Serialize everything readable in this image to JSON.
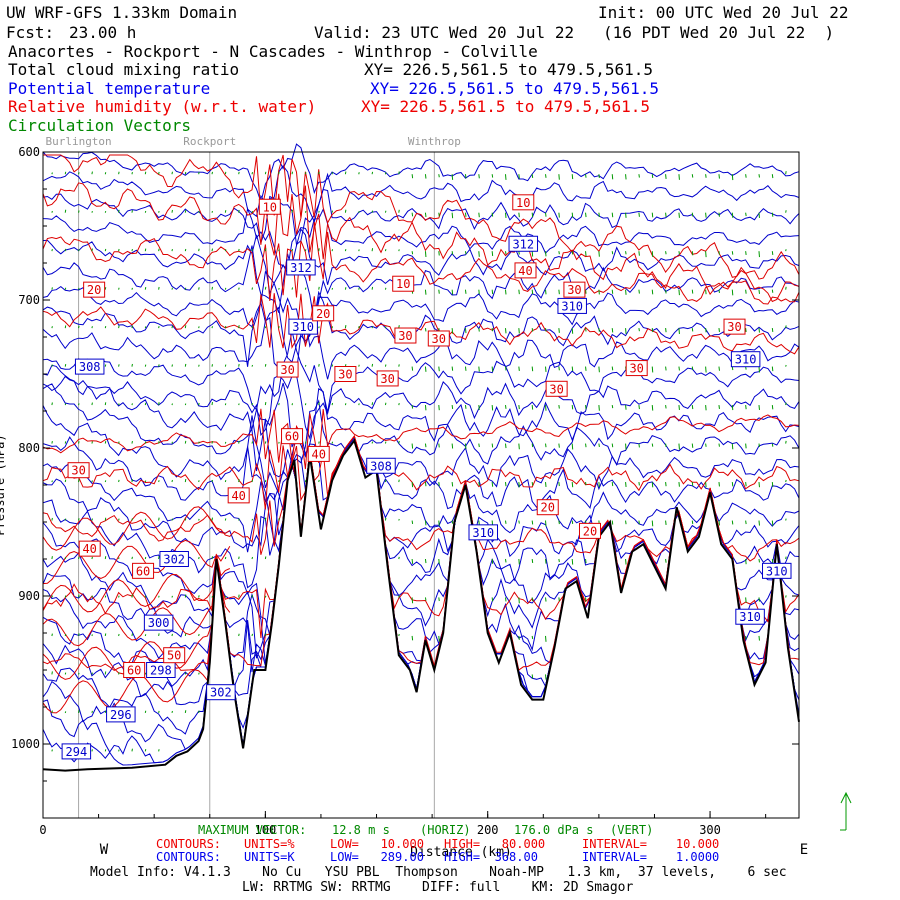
{
  "header": {
    "title": "UW WRF-GFS 1.33km Domain",
    "init": "Init: 00 UTC Wed 20 Jul 22",
    "fcst_label": "Fcst:",
    "fcst_value": "23.00 h",
    "valid": "Valid: 23 UTC Wed 20 Jul 22   (16 PDT Wed 20 Jul 22  )",
    "route": "Anacortes - Rockport - N Cascades - Winthrop - Colville"
  },
  "fields": [
    {
      "name": "Total cloud mixing ratio",
      "xy": "XY= 226.5,561.5 to 479.5,561.5",
      "color": "#000000"
    },
    {
      "name": "Potential temperature",
      "xy": "XY= 226.5,561.5 to 479.5,561.5",
      "color": "#0000ee"
    },
    {
      "name": "Relative humidity (w.r.t. water)",
      "xy": "XY= 226.5,561.5 to 479.5,561.5",
      "color": "#ee0000"
    },
    {
      "name": "Circulation Vectors",
      "color": "#008800"
    }
  ],
  "chart_data": {
    "type": "line",
    "x_axis": {
      "range": [
        0,
        340
      ],
      "ticks": [
        0,
        100,
        200,
        300
      ],
      "tick_labels": [
        "0",
        "100",
        "200",
        "300"
      ],
      "label": "Distance (km)",
      "left_end": "W",
      "right_end": "E"
    },
    "y_axis": {
      "range_hpa": [
        1050,
        600
      ],
      "ticks": [
        600,
        700,
        800,
        900,
        1000
      ],
      "tick_labels": [
        "600",
        "700",
        "800",
        "900",
        "1000"
      ],
      "label": "Pressure (hPa)"
    },
    "locations": [
      {
        "name": "Burlington",
        "km": 16
      },
      {
        "name": "Rockport",
        "km": 75
      },
      {
        "name": "Winthrop",
        "km": 176
      }
    ],
    "terrain_pressure": {
      "km": [
        0,
        10,
        20,
        40,
        55,
        60,
        65,
        70,
        72,
        75,
        78,
        82,
        86,
        90,
        95,
        100,
        103,
        106,
        110,
        113,
        116,
        120,
        125,
        130,
        135,
        140,
        145,
        150,
        155,
        160,
        165,
        168,
        172,
        176,
        180,
        185,
        190,
        195,
        200,
        205,
        210,
        215,
        220,
        225,
        230,
        235,
        240,
        245,
        250,
        255,
        260,
        265,
        270,
        275,
        280,
        285,
        290,
        295,
        300,
        305,
        310,
        315,
        320,
        325,
        330,
        335,
        340
      ],
      "hpa": [
        1017,
        1018,
        1017,
        1016,
        1014,
        1008,
        1005,
        998,
        990,
        945,
        875,
        918,
        965,
        1003,
        950,
        950,
        918,
        880,
        822,
        808,
        860,
        805,
        855,
        822,
        805,
        795,
        820,
        815,
        880,
        940,
        950,
        965,
        930,
        950,
        925,
        850,
        825,
        870,
        925,
        945,
        925,
        960,
        970,
        970,
        935,
        895,
        890,
        915,
        860,
        850,
        898,
        870,
        865,
        880,
        895,
        840,
        870,
        860,
        830,
        865,
        875,
        930,
        960,
        945,
        865,
        935,
        985
      ]
    },
    "series": [
      {
        "name": "Potential temperature",
        "units": "K",
        "low": "289.00",
        "high": "368.00",
        "interval": "1.0000",
        "labels": [
          {
            "text": "308",
            "km": 21,
            "hpa": 745
          },
          {
            "text": "312",
            "km": 116,
            "hpa": 678
          },
          {
            "text": "310",
            "km": 117,
            "hpa": 718
          },
          {
            "text": "308",
            "km": 152,
            "hpa": 812
          },
          {
            "text": "312",
            "km": 216,
            "hpa": 662
          },
          {
            "text": "310",
            "km": 238,
            "hpa": 704
          },
          {
            "text": "310",
            "km": 316,
            "hpa": 740
          },
          {
            "text": "310",
            "km": 198,
            "hpa": 857
          },
          {
            "text": "302",
            "km": 59,
            "hpa": 875
          },
          {
            "text": "300",
            "km": 52,
            "hpa": 918
          },
          {
            "text": "298",
            "km": 53,
            "hpa": 950
          },
          {
            "text": "302",
            "km": 80,
            "hpa": 965
          },
          {
            "text": "296",
            "km": 35,
            "hpa": 980
          },
          {
            "text": "294",
            "km": 15,
            "hpa": 1005
          },
          {
            "text": "310",
            "km": 330,
            "hpa": 883
          },
          {
            "text": "310",
            "km": 318,
            "hpa": 914
          }
        ]
      },
      {
        "name": "Relative humidity (w.r.t. water)",
        "units": "%",
        "low": "10.000",
        "high": "80.000",
        "interval": "10.000",
        "labels": [
          {
            "text": "20",
            "km": 23,
            "hpa": 693
          },
          {
            "text": "10",
            "km": 102,
            "hpa": 637
          },
          {
            "text": "10",
            "km": 162,
            "hpa": 689
          },
          {
            "text": "30",
            "km": 163,
            "hpa": 724
          },
          {
            "text": "30",
            "km": 178,
            "hpa": 726
          },
          {
            "text": "30",
            "km": 155,
            "hpa": 753
          },
          {
            "text": "30",
            "km": 136,
            "hpa": 750
          },
          {
            "text": "30",
            "km": 110,
            "hpa": 747
          },
          {
            "text": "20",
            "km": 126,
            "hpa": 709
          },
          {
            "text": "60",
            "km": 112,
            "hpa": 792
          },
          {
            "text": "40",
            "km": 124,
            "hpa": 804
          },
          {
            "text": "40",
            "km": 88,
            "hpa": 832
          },
          {
            "text": "30",
            "km": 16,
            "hpa": 815
          },
          {
            "text": "40",
            "km": 21,
            "hpa": 868
          },
          {
            "text": "60",
            "km": 45,
            "hpa": 883
          },
          {
            "text": "50",
            "km": 59,
            "hpa": 940
          },
          {
            "text": "60",
            "km": 41,
            "hpa": 950
          },
          {
            "text": "10",
            "km": 216,
            "hpa": 634
          },
          {
            "text": "40",
            "km": 217,
            "hpa": 680
          },
          {
            "text": "30",
            "km": 239,
            "hpa": 693
          },
          {
            "text": "30",
            "km": 231,
            "hpa": 760
          },
          {
            "text": "30",
            "km": 267,
            "hpa": 746
          },
          {
            "text": "30",
            "km": 311,
            "hpa": 718
          },
          {
            "text": "20",
            "km": 227,
            "hpa": 840
          },
          {
            "text": "20",
            "km": 246,
            "hpa": 856
          }
        ]
      },
      {
        "name": "Circulation Vectors"
      }
    ],
    "vector_scale": {
      "label": "MAXIMUM VECTOR:",
      "horiz": "12.8 m s",
      "vert": "176.0 dPa s"
    }
  },
  "contours": {
    "red": {
      "label": "CONTOURS:",
      "units": "UNITS=%",
      "low": "LOW=   10.000",
      "high": "HIGH=   80.000",
      "interval": "INTERVAL=    10.000"
    },
    "blue": {
      "label": "CONTOURS:",
      "units": "UNITS=K",
      "low": "LOW=   289.00",
      "high": "HIGH=  368.00",
      "interval": "INTERVAL=    1.0000"
    }
  },
  "vector": {
    "label": "MAXIMUM VECTOR:",
    "horiz": "12.8 m s",
    "horiz_unit": "(HORIZ)",
    "vert": "176.0 dPa s",
    "vert_unit": "(VERT)"
  },
  "model_info": "Model Info: V4.1.3    No Cu   YSU PBL  Thompson    Noah-MP   1.3 km,  37 levels,    6 sec",
  "model_info2": "LW: RRTMG SW: RRTMG    DIFF: full    KM: 2D Smagor"
}
